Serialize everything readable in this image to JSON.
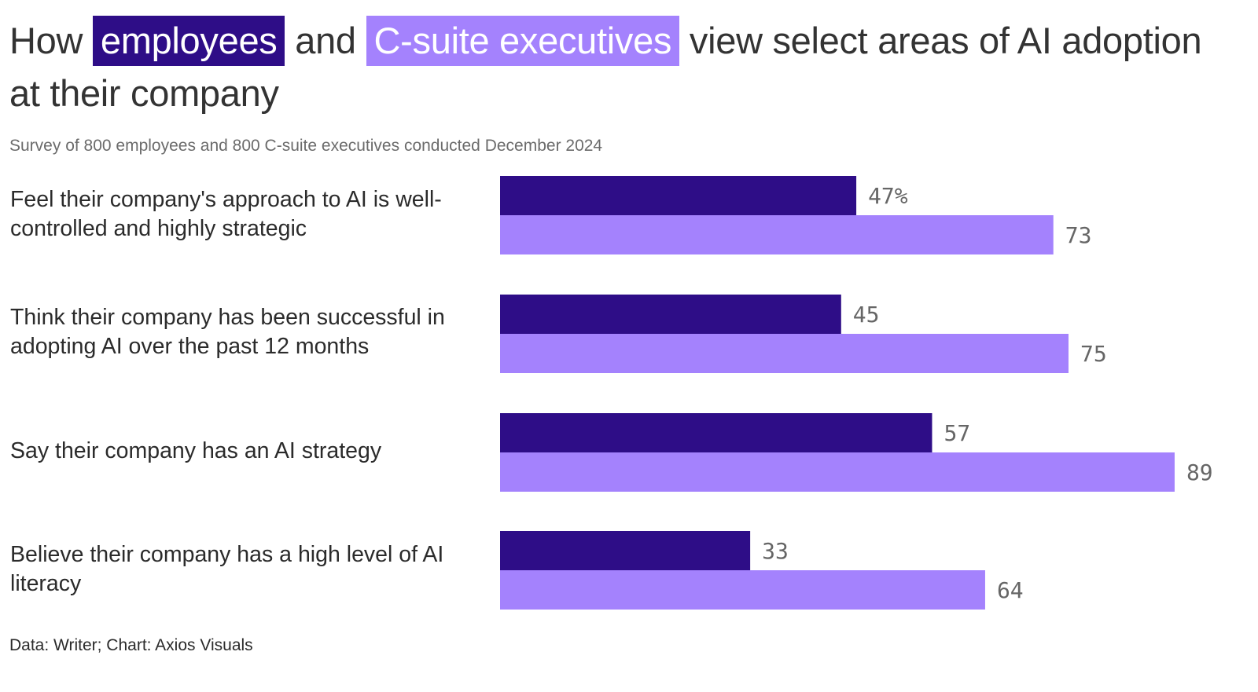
{
  "title": {
    "prefix": "How ",
    "employees": "employees",
    "middle": " and ",
    "executives": "C-suite executives",
    "suffix": " view select areas of AI adoption at their company"
  },
  "subtitle": "Survey of 800 employees and 800 C-suite executives conducted December 2024",
  "footer": "Data: Writer; Chart: Axios Visuals",
  "colors": {
    "employees": "#2e0d87",
    "executives": "#a482fd"
  },
  "chart_data": {
    "type": "bar",
    "orientation": "horizontal",
    "categories": [
      "Feel their company's approach to AI is well-controlled and highly strategic",
      "Think their company has been successful in adopting AI over the past 12 months",
      "Say their company has an AI strategy",
      "Believe their company has a high level of AI literacy"
    ],
    "series": [
      {
        "name": "employees",
        "values": [
          47,
          45,
          57,
          33
        ],
        "labels": [
          "47%",
          "45",
          "57",
          "33"
        ]
      },
      {
        "name": "C-suite executives",
        "values": [
          73,
          75,
          89,
          64
        ],
        "labels": [
          "73",
          "75",
          "89",
          "64"
        ]
      }
    ],
    "unit": "%",
    "xlim": [
      0,
      100
    ],
    "grid": false,
    "legend": "inline in title"
  }
}
